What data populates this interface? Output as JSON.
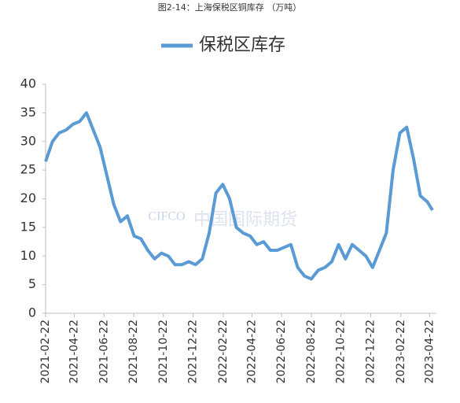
{
  "chart_data": {
    "type": "line",
    "title": "图2-14：上海保税区铜库存 （万吨）",
    "watermark": [
      "CIFCO",
      "中国国际期货"
    ],
    "x": [
      "2021-02-22",
      "2021-03-08",
      "2021-03-22",
      "2021-04-05",
      "2021-04-19",
      "2021-05-03",
      "2021-05-17",
      "2021-05-31",
      "2021-06-14",
      "2021-06-28",
      "2021-07-12",
      "2021-07-26",
      "2021-08-09",
      "2021-08-23",
      "2021-09-06",
      "2021-09-20",
      "2021-10-04",
      "2021-10-18",
      "2021-11-01",
      "2021-11-15",
      "2021-11-29",
      "2021-12-13",
      "2021-12-27",
      "2022-01-10",
      "2022-01-24",
      "2022-02-07",
      "2022-02-21",
      "2022-03-07",
      "2022-03-21",
      "2022-04-04",
      "2022-04-18",
      "2022-05-02",
      "2022-05-16",
      "2022-05-30",
      "2022-06-13",
      "2022-06-27",
      "2022-07-11",
      "2022-07-25",
      "2022-08-08",
      "2022-08-22",
      "2022-09-05",
      "2022-09-19",
      "2022-10-03",
      "2022-10-17",
      "2022-10-31",
      "2022-11-14",
      "2022-11-28",
      "2022-12-12",
      "2022-12-26",
      "2023-01-09",
      "2023-01-23",
      "2023-02-06",
      "2023-02-20",
      "2023-03-06",
      "2023-03-20",
      "2023-04-03",
      "2023-04-17",
      "2023-04-28"
    ],
    "series": [
      {
        "name": "保税区库存",
        "color": "#5b9bd5",
        "values": [
          26.5,
          30,
          31.5,
          32,
          33,
          33.5,
          35,
          32,
          29,
          24,
          19,
          16,
          17,
          13.5,
          13,
          11,
          9.5,
          10.5,
          10,
          8.5,
          8.5,
          9,
          8.5,
          9.5,
          14,
          21,
          22.5,
          20,
          15,
          14,
          13.5,
          12,
          12.5,
          11,
          11,
          11.5,
          12,
          8,
          6.5,
          6,
          7.5,
          8,
          9,
          12,
          9.5,
          12,
          11,
          10,
          8,
          11,
          14,
          25,
          31.5,
          32.5,
          27,
          20.5,
          19.5,
          18
        ]
      }
    ],
    "xlim": [
      "2021-02-22",
      "2023-05-06"
    ],
    "xticks": [
      "2021-02-22",
      "2021-04-22",
      "2021-06-22",
      "2021-08-22",
      "2021-10-22",
      "2021-12-22",
      "2022-02-22",
      "2022-04-22",
      "2022-06-22",
      "2022-08-22",
      "2022-10-22",
      "2022-12-22",
      "2023-02-22",
      "2023-04-22"
    ],
    "ylim": [
      0,
      40
    ],
    "yticks": [
      0,
      5,
      10,
      15,
      20,
      25,
      30,
      35,
      40
    ],
    "grid": false
  }
}
